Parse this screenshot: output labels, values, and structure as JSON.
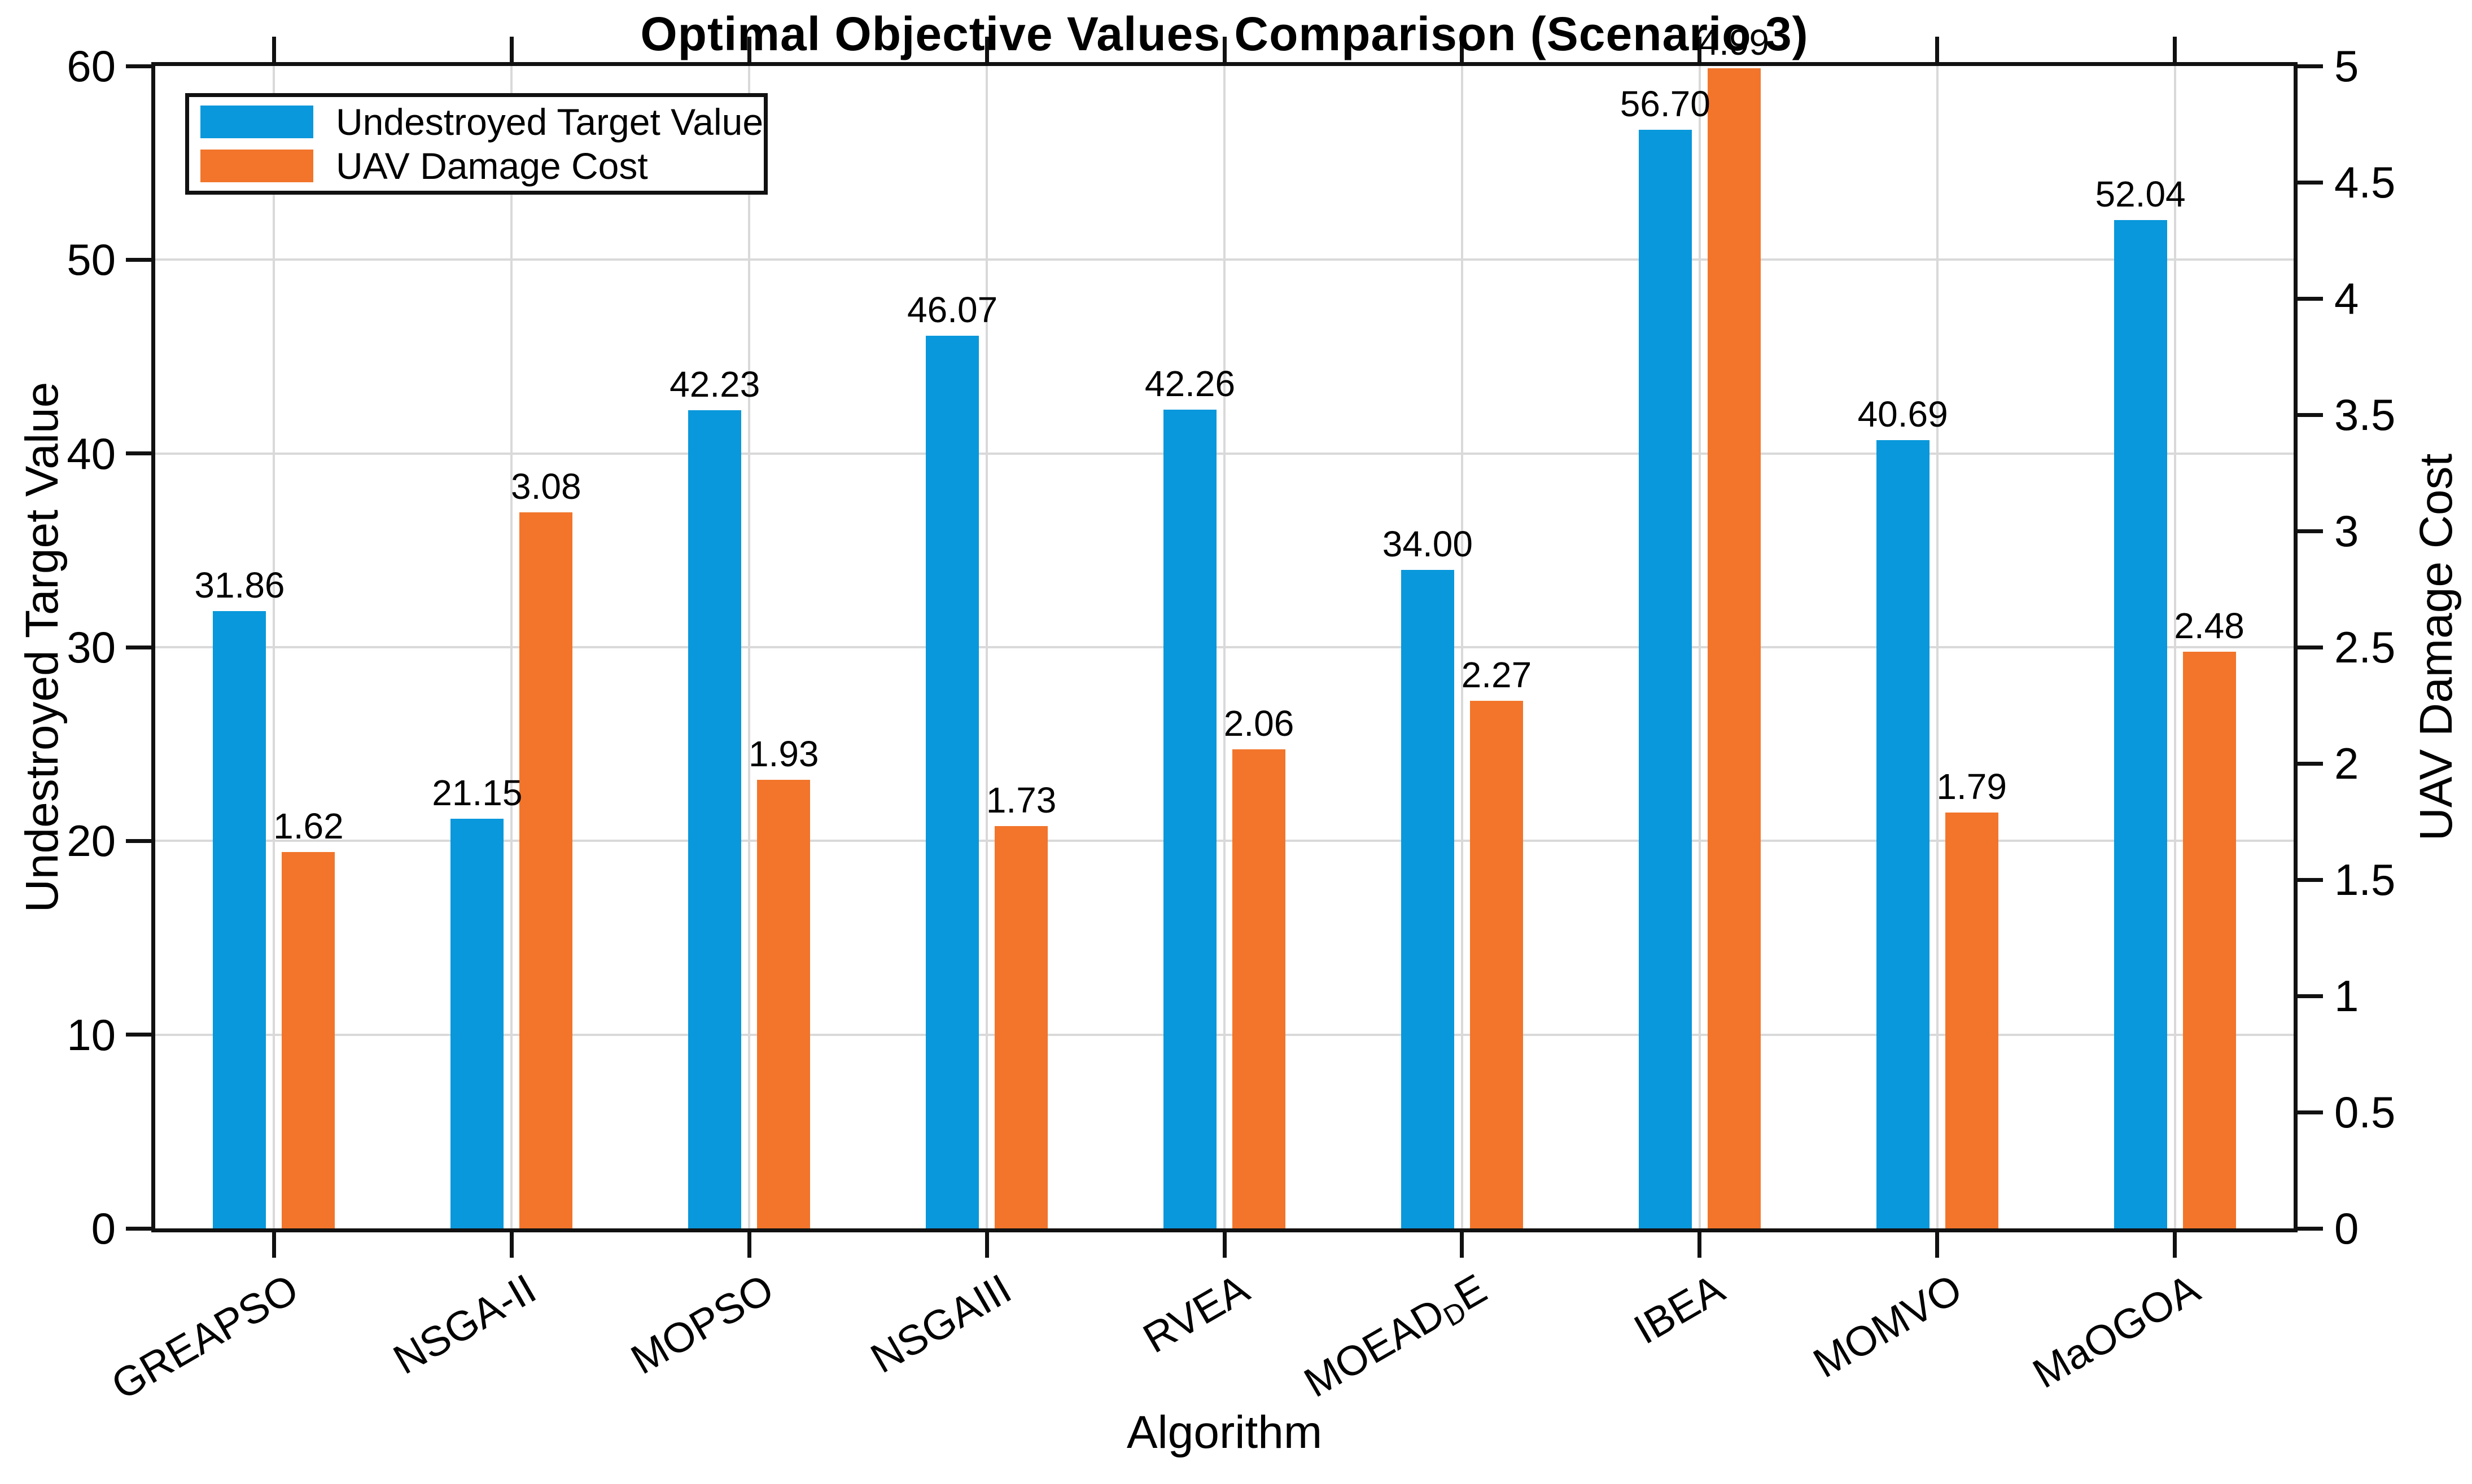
{
  "figure": {
    "background": "#ffffff"
  },
  "chart_data": {
    "type": "bar",
    "title": "Optimal Objective Values Comparison (Scenario 3)",
    "xlabel": "Algorithm",
    "ylabel_left": "Undestroyed Target Value",
    "ylabel_right": "UAV Damage Cost",
    "categories": [
      "GREAPSO",
      "NSGA-II",
      "MOPSO",
      "NSGAIII",
      "RVEA",
      "MOEAD_{D}E",
      "IBEA",
      "MOMVO",
      "MaOGOA"
    ],
    "series": [
      {
        "name": "Undestroyed Target Value",
        "axis": "left",
        "color": "#0998DB",
        "values": [
          31.86,
          21.15,
          42.23,
          46.07,
          42.26,
          34.0,
          56.7,
          40.69,
          52.04
        ]
      },
      {
        "name": "UAV Damage Cost",
        "axis": "right",
        "color": "#F2752B",
        "values": [
          1.62,
          3.08,
          1.93,
          1.73,
          2.06,
          2.27,
          4.99,
          1.79,
          2.48
        ]
      }
    ],
    "left_axis": {
      "min": 0,
      "max": 60,
      "step": 10,
      "ticks": [
        "0",
        "10",
        "20",
        "30",
        "40",
        "50",
        "60"
      ]
    },
    "right_axis": {
      "min": 0,
      "max": 5,
      "step": 0.5,
      "ticks": [
        "0",
        "0.5",
        "1",
        "1.5",
        "2",
        "2.5",
        "3",
        "3.5",
        "4",
        "4.5",
        "5"
      ]
    },
    "value_label_decimals": 2,
    "grid": true,
    "legend_position": "top-left",
    "colors": {
      "grid": "#D9D9D9",
      "axis": "#111111",
      "text": "#000000"
    }
  }
}
